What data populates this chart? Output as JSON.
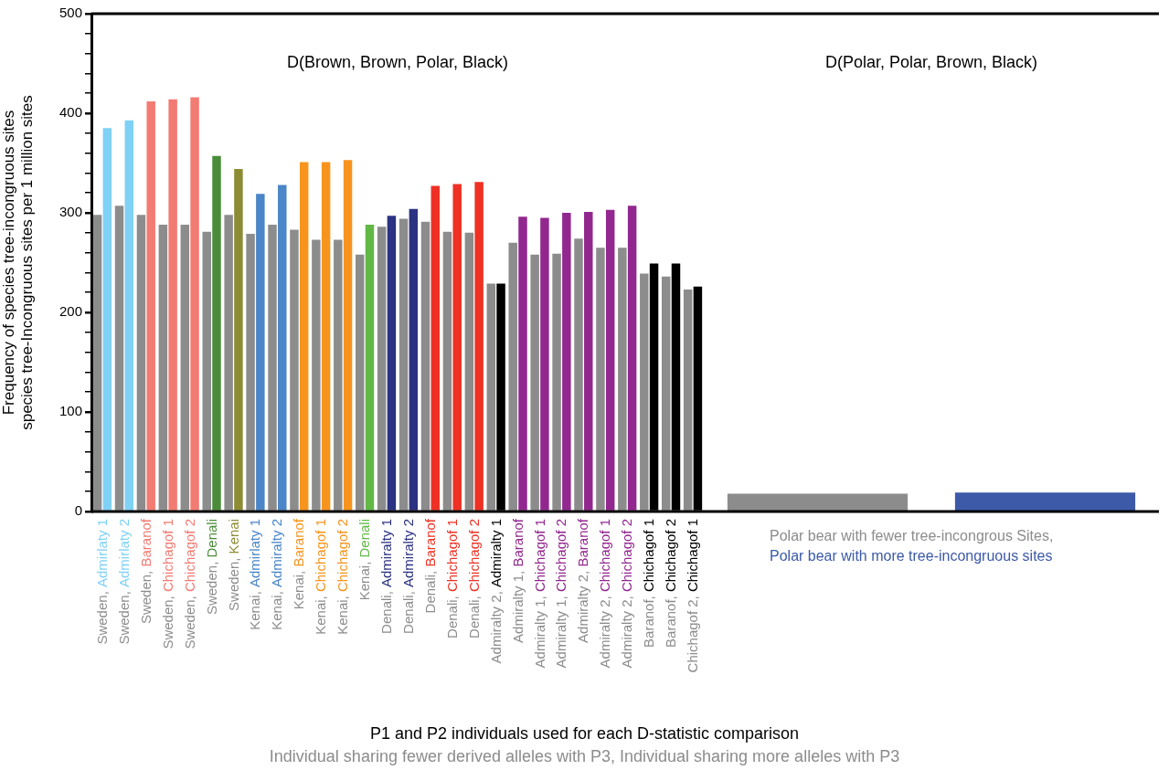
{
  "chart_data": [
    {
      "type": "bar",
      "title": "D(Brown, Brown, Polar, Black)",
      "xlabel": "P1 and P2 individuals used for each D-statistic comparison",
      "ylabel": "Frequency of species tree-incongruous sites\nspecies tree-Incongruous sites per 1 million sites",
      "annotations": [
        "Individual sharing fewer derived alleles with P3, Individual sharing more alleles with P3"
      ],
      "categories": [
        "Sweden, Admirlaty 1",
        "Sweden, Admirlaty 2",
        "Sweden, Baranof",
        "Sweden, Chichagof 1",
        "Sweden, Chichagof 2",
        "Sweden, Denali",
        "Sweden, Kenai",
        "Kenai, Admirlaty 1",
        "Kenai, Admiralty 2",
        "Kenai, Baranof",
        "Kenai, Chichagof 1",
        "Kenai, Chichagof 2",
        "Kenai, Denali",
        "Denali, Admiralty 1",
        "Denali, Admiralty 2",
        "Denali, Baranof",
        "Denali, Chichagof 1",
        "Denali, Chichagof 2",
        "Admiralty 2, Admiralty 1",
        "Admiralty 1, Baranof",
        "Admiralty 1, Chichagof 1",
        "Admiralty 1, Chichagof 2",
        "Admiralty 2, Baranof",
        "Admiralty 2, Chichagof 1",
        "Admiralty 2, Chichagof 2",
        "Baranof, Chichagof 1",
        "Baranof, Chichagof 2",
        "Chichagof 2, Chichagof 1"
      ],
      "series": [
        {
          "color": "#8c8c8c",
          "values": [
            298,
            307,
            298,
            288,
            288,
            281,
            298,
            279,
            288,
            283,
            273,
            273,
            258,
            286,
            294,
            291,
            281,
            280,
            229,
            270,
            258,
            259,
            274,
            265,
            265,
            239,
            236,
            223
          ]
        },
        {
          "colors": [
            "#7fd1f5",
            "#7fd1f5",
            "#f27b73",
            "#f27b73",
            "#f27b73",
            "#4a8c3a",
            "#8c8c34",
            "#4a86c8",
            "#4a86c8",
            "#f7941d",
            "#f7941d",
            "#f7941d",
            "#62b846",
            "#2b3281",
            "#2b3281",
            "#ee3124",
            "#ee3124",
            "#ee3124",
            "#000000",
            "#92278f",
            "#92278f",
            "#92278f",
            "#92278f",
            "#92278f",
            "#92278f",
            "#000000",
            "#000000",
            "#000000"
          ],
          "values": [
            385,
            393,
            412,
            414,
            416,
            357,
            344,
            319,
            328,
            351,
            351,
            353,
            288,
            297,
            304,
            327,
            329,
            331,
            229,
            296,
            295,
            300,
            301,
            303,
            307,
            249,
            249,
            226
          ]
        }
      ],
      "ylim": [
        0,
        500
      ],
      "yticks": [
        0,
        {
          "value": 20,
          "label": null
        },
        {
          "value": 40,
          "label": null
        },
        {
          "value": 60,
          "label": null
        },
        {
          "value": 80,
          "label": null
        },
        100,
        {
          "value": 120,
          "label": null
        },
        {
          "value": 140,
          "label": null
        },
        {
          "value": 160,
          "label": null
        },
        {
          "value": 180,
          "label": null
        },
        200,
        {
          "value": 220,
          "label": null
        },
        {
          "value": 240,
          "label": null
        },
        {
          "value": 260,
          "label": null
        },
        {
          "value": 280,
          "label": null
        },
        300,
        {
          "value": 320,
          "label": null
        },
        {
          "value": 340,
          "label": null
        },
        {
          "value": 360,
          "label": null
        },
        {
          "value": 380,
          "label": null
        },
        400,
        {
          "value": 420,
          "label": null
        },
        {
          "value": 440,
          "label": null
        },
        {
          "value": 460,
          "label": null
        },
        {
          "value": 480,
          "label": null
        },
        500
      ]
    },
    {
      "type": "bar",
      "title": "D(Polar, Polar, Brown, Black)",
      "categories": [
        null,
        null
      ],
      "annotations": [
        "Polar bear with fewer tree-incongrous Sites,",
        "Polar bear with more tree-incongruous sites"
      ],
      "series": [
        {
          "colors": [
            "#8c8c8c",
            "#3c5aa8"
          ],
          "values": [
            18,
            19
          ]
        }
      ],
      "ylim": [
        0,
        500
      ],
      "tick_labels": false
    }
  ]
}
